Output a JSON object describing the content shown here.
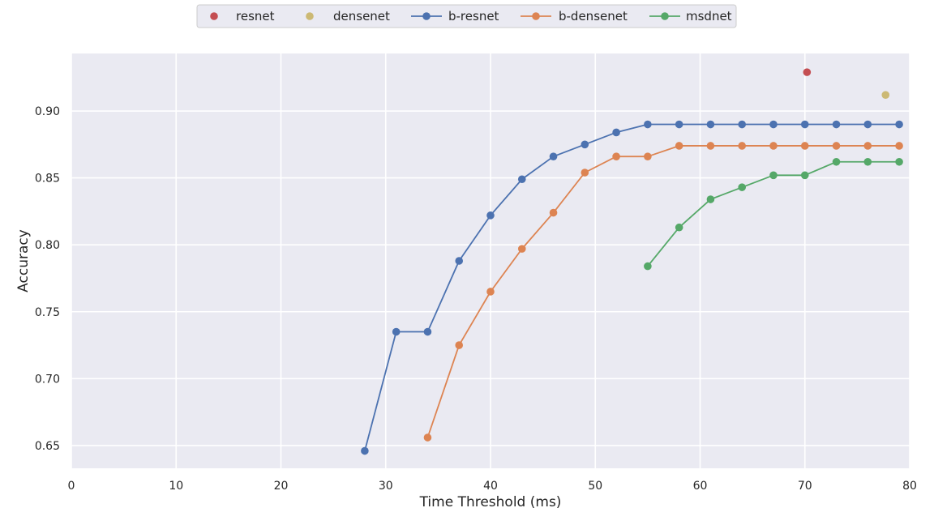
{
  "chart_data": {
    "type": "line",
    "title": "",
    "xlabel": "Time Threshold (ms)",
    "ylabel": "Accuracy",
    "xlim": [
      0,
      80
    ],
    "ylim": [
      0.633,
      0.943
    ],
    "xticks": [
      0,
      10,
      20,
      30,
      40,
      50,
      60,
      70,
      80
    ],
    "yticks": [
      0.65,
      0.7,
      0.75,
      0.8,
      0.85,
      0.9
    ],
    "ytick_labels": [
      "0.65",
      "0.70",
      "0.75",
      "0.80",
      "0.85",
      "0.90"
    ],
    "grid": true,
    "legend_position": "top-center",
    "series": [
      {
        "name": "resnet",
        "color": "#c44e52",
        "style": "marker",
        "points": [
          [
            70.2,
            0.929
          ]
        ]
      },
      {
        "name": "densenet",
        "color": "#ccb974",
        "style": "marker",
        "points": [
          [
            77.7,
            0.912
          ]
        ]
      },
      {
        "name": "b-resnet",
        "color": "#4c72b0",
        "style": "line-marker",
        "points": [
          [
            28,
            0.646
          ],
          [
            31,
            0.735
          ],
          [
            34,
            0.735
          ],
          [
            37,
            0.788
          ],
          [
            40,
            0.822
          ],
          [
            43,
            0.849
          ],
          [
            46,
            0.866
          ],
          [
            49,
            0.875
          ],
          [
            52,
            0.884
          ],
          [
            55,
            0.89
          ],
          [
            58,
            0.89
          ],
          [
            61,
            0.89
          ],
          [
            64,
            0.89
          ],
          [
            67,
            0.89
          ],
          [
            70,
            0.89
          ],
          [
            73,
            0.89
          ],
          [
            76,
            0.89
          ],
          [
            79,
            0.89
          ]
        ]
      },
      {
        "name": "b-densenet",
        "color": "#dd8452",
        "style": "line-marker",
        "points": [
          [
            34,
            0.656
          ],
          [
            37,
            0.725
          ],
          [
            40,
            0.765
          ],
          [
            43,
            0.797
          ],
          [
            46,
            0.824
          ],
          [
            49,
            0.854
          ],
          [
            52,
            0.866
          ],
          [
            55,
            0.866
          ],
          [
            58,
            0.874
          ],
          [
            61,
            0.874
          ],
          [
            64,
            0.874
          ],
          [
            67,
            0.874
          ],
          [
            70,
            0.874
          ],
          [
            73,
            0.874
          ],
          [
            76,
            0.874
          ],
          [
            79,
            0.874
          ]
        ]
      },
      {
        "name": "msdnet",
        "color": "#55a868",
        "style": "line-marker",
        "points": [
          [
            55,
            0.784
          ],
          [
            58,
            0.813
          ],
          [
            61,
            0.834
          ],
          [
            64,
            0.843
          ],
          [
            67,
            0.852
          ],
          [
            70,
            0.852
          ],
          [
            73,
            0.862
          ],
          [
            76,
            0.862
          ],
          [
            79,
            0.862
          ]
        ]
      }
    ]
  }
}
